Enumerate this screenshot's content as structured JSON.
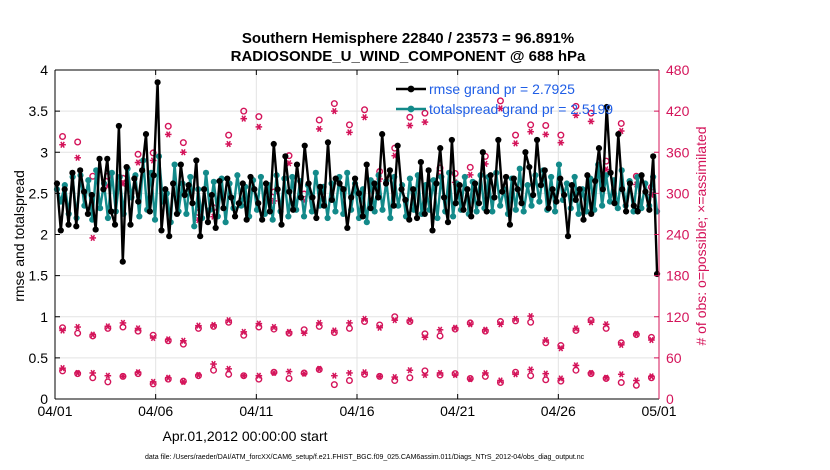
{
  "chart_data": {
    "type": "line",
    "title_line1": "Southern Hemisphere 22840 / 23573 = 96.891%",
    "title_line2": "RADIOSONDE_U_WIND_COMPONENT @ 688 hPa",
    "xlabel": "Apr.01,2012 00:00:00 start",
    "ylabel_left": "rmse and totalspread",
    "ylabel_right": "# of obs: o=possible; ×=assimilated",
    "x_ticks": [
      "04/01",
      "04/06",
      "04/11",
      "04/16",
      "04/21",
      "04/26",
      "05/01"
    ],
    "xlim_days": [
      0,
      30
    ],
    "ylim_left": [
      0,
      4
    ],
    "y_ticks_left": [
      "0",
      "0.5",
      "1",
      "1.5",
      "2",
      "2.5",
      "3",
      "3.5",
      "4"
    ],
    "ylim_right": [
      0,
      480
    ],
    "y_ticks_right": [
      "0",
      "60",
      "120",
      "180",
      "240",
      "300",
      "360",
      "420",
      "480"
    ],
    "legend": [
      "rmse grand pr = 2.7925",
      "totalspread grand pr = 2.5199"
    ],
    "colors": {
      "rmse": "#000000",
      "spread": "#138a8a",
      "obs": "#d4145a",
      "grid": "#e3e3e3"
    },
    "series": [
      {
        "name": "rmse",
        "values": [
          2.62,
          2.05,
          2.55,
          2.12,
          2.75,
          2.1,
          2.78,
          2.52,
          2.25,
          2.48,
          2.06,
          2.92,
          2.55,
          2.92,
          2.28,
          2.12,
          3.32,
          1.67,
          2.82,
          2.12,
          2.68,
          2.4,
          2.78,
          3.22,
          2.28,
          2.72,
          3.85,
          2.05,
          2.55,
          1.98,
          2.62,
          2.25,
          2.85,
          2.48,
          2.6,
          2.38,
          2.9,
          1.98,
          2.55,
          2.15,
          2.48,
          2.08,
          2.65,
          2.32,
          2.68,
          2.45,
          2.22,
          2.38,
          2.62,
          2.18,
          2.7,
          2.55,
          2.38,
          2.18,
          2.62,
          2.28,
          3.1,
          2.55,
          2.12,
          2.95,
          2.52,
          2.3,
          2.85,
          2.45,
          3.08,
          2.62,
          2.45,
          2.2,
          2.58,
          2.35,
          3.12,
          2.42,
          2.68,
          2.62,
          2.55,
          2.08,
          2.45,
          2.68,
          2.5,
          2.22,
          2.85,
          2.32,
          2.62,
          2.45,
          3.22,
          2.62,
          2.78,
          2.35,
          3.08,
          2.55,
          2.42,
          2.18,
          2.55,
          2.2,
          2.88,
          2.25,
          2.78,
          2.05,
          2.62,
          3.05,
          2.45,
          2.15,
          3.15,
          2.38,
          2.6,
          2.3,
          2.55,
          2.22,
          2.62,
          2.38,
          3.0,
          2.28,
          2.72,
          2.45,
          3.15,
          2.52,
          2.7,
          2.12,
          2.68,
          2.55,
          2.38,
          3.0,
          2.82,
          2.48,
          3.15,
          2.6,
          2.78,
          2.32,
          2.55,
          2.4,
          2.68,
          2.48,
          1.98,
          2.6,
          2.42,
          2.55,
          2.18,
          2.72,
          2.25,
          2.65,
          3.05,
          2.55,
          3.55,
          2.75,
          2.38,
          3.22,
          2.55,
          2.28,
          2.62,
          2.35,
          2.28,
          2.72,
          2.52,
          2.3,
          2.95,
          1.52
        ]
      },
      {
        "name": "totalspread",
        "values": [
          2.55,
          2.4,
          2.6,
          2.25,
          2.7,
          2.2,
          2.72,
          2.35,
          2.66,
          2.18,
          2.78,
          2.32,
          2.62,
          2.2,
          2.75,
          2.28,
          2.7,
          2.25,
          2.8,
          2.45,
          2.72,
          2.22,
          2.9,
          2.3,
          2.75,
          2.18,
          2.95,
          2.4,
          2.5,
          2.15,
          2.85,
          2.28,
          2.62,
          2.25,
          2.7,
          2.1,
          2.55,
          2.2,
          2.75,
          2.3,
          2.64,
          2.22,
          2.68,
          2.15,
          2.62,
          2.32,
          2.72,
          2.35,
          2.58,
          2.22,
          2.66,
          2.3,
          2.7,
          2.25,
          2.6,
          2.18,
          2.72,
          2.28,
          2.68,
          2.22,
          2.7,
          2.3,
          2.65,
          2.22,
          2.6,
          2.28,
          2.75,
          2.35,
          2.58,
          2.2,
          2.62,
          2.28,
          2.7,
          2.25,
          2.75,
          2.3,
          2.62,
          2.2,
          2.55,
          2.15,
          2.66,
          2.28,
          2.72,
          2.3,
          2.65,
          2.2,
          2.7,
          2.35,
          2.6,
          2.22,
          2.68,
          2.3,
          2.72,
          2.25,
          2.6,
          2.3,
          2.66,
          2.2,
          2.7,
          2.28,
          2.75,
          2.22,
          2.62,
          2.3,
          2.7,
          2.25,
          2.64,
          2.28,
          2.72,
          2.32,
          2.7,
          2.28,
          2.75,
          2.35,
          2.55,
          2.25,
          2.68,
          2.3,
          2.8,
          2.28,
          2.6,
          2.35,
          2.72,
          2.4,
          2.78,
          2.3,
          2.7,
          2.28,
          2.85,
          2.42,
          2.62,
          2.32,
          2.7,
          2.25,
          2.55,
          2.28,
          2.68,
          2.3,
          2.85,
          2.35,
          2.72,
          2.4,
          2.66,
          2.32,
          2.78,
          2.35,
          2.65,
          2.28,
          2.7,
          2.32,
          2.62,
          2.35,
          2.7,
          2.28
        ]
      },
      {
        "name": "obs_possible_upper",
        "values": [
          383,
          375,
          325,
          325,
          322,
          357,
          359,
          398,
          374,
          272,
          279,
          385,
          420,
          412,
          302,
          355,
          299,
          407,
          431,
          400,
          422,
          332,
          366,
          411,
          417,
          337,
          329,
          338,
          354,
          435,
          385,
          400,
          399,
          385,
          427,
          417,
          347,
          402,
          325,
          309
        ]
      },
      {
        "name": "obs_assimilated_upper",
        "values": [
          371,
          352,
          235,
          311,
          314,
          345,
          348,
          386,
          360,
          261,
          266,
          372,
          409,
          397,
          289,
          344,
          289,
          394,
          420,
          389,
          411,
          321,
          355,
          399,
          404,
          326,
          316,
          327,
          343,
          424,
          373,
          390,
          386,
          374,
          414,
          405,
          335,
          391,
          313,
          298
        ]
      },
      {
        "name": "obs_possible_mid",
        "values": [
          104,
          96,
          92,
          103,
          105,
          99,
          93,
          85,
          80,
          103,
          106,
          112,
          93,
          105,
          102,
          96,
          101,
          106,
          97,
          103,
          113,
          108,
          120,
          113,
          95,
          92,
          102,
          111,
          99,
          113,
          114,
          112,
          82,
          78,
          100,
          115,
          103,
          82,
          94,
          90
        ]
      },
      {
        "name": "obs_assimilated_mid",
        "values": [
          100,
          105,
          94,
          106,
          111,
          103,
          89,
          87,
          85,
          107,
          108,
          115,
          98,
          110,
          105,
          98,
          96,
          111,
          100,
          111,
          117,
          104,
          115,
          115,
          90,
          101,
          104,
          109,
          101,
          109,
          117,
          121,
          86,
          74,
          103,
          112,
          109,
          79,
          95,
          86
        ]
      },
      {
        "name": "obs_possible_low",
        "values": [
          41,
          37,
          31,
          25,
          33,
          37,
          22,
          29,
          26,
          34,
          42,
          36,
          34,
          29,
          39,
          30,
          38,
          43,
          21,
          27,
          36,
          33,
          27,
          31,
          41,
          35,
          37,
          30,
          33,
          24,
          39,
          34,
          28,
          26,
          42,
          37,
          30,
          24,
          20,
          31
        ]
      },
      {
        "name": "obs_assimilated_low",
        "values": [
          45,
          38,
          38,
          34,
          33,
          39,
          25,
          31,
          25,
          35,
          51,
          44,
          34,
          34,
          38,
          40,
          37,
          44,
          34,
          38,
          39,
          33,
          32,
          42,
          35,
          38,
          35,
          29,
          38,
          27,
          36,
          43,
          37,
          30,
          49,
          38,
          31,
          36,
          27,
          33
        ]
      }
    ]
  },
  "footer": "data file: /Users/raeder/DAI/ATM_forcXX/CAM6_setup/f.e21.FHIST_BGC.f09_025.CAM6assim.011/Diags_NTrS_2012-04/obs_diag_output.nc"
}
